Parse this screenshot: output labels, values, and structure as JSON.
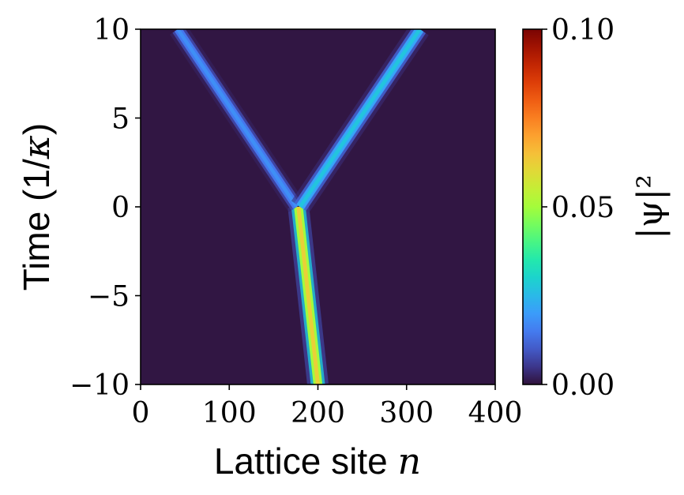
{
  "chart_data": {
    "type": "heatmap",
    "xlabel": {
      "text": "Lattice site ",
      "math": "n"
    },
    "ylabel": {
      "text": "Time (1/",
      "math": "κ",
      "close": ")"
    },
    "xlim": [
      0,
      400
    ],
    "ylim": [
      -10,
      10
    ],
    "x_ticks": [
      0,
      100,
      200,
      300,
      400
    ],
    "x_tick_labels": [
      "0",
      "100",
      "200",
      "300",
      "400"
    ],
    "y_ticks": [
      -10,
      -5,
      0,
      5,
      10
    ],
    "y_tick_labels": [
      "−10",
      "−5",
      "0",
      "5",
      "10"
    ],
    "colorbar": {
      "label": "|ψ|²",
      "min": 0,
      "max": 0.1,
      "ticks": [
        0,
        0.05,
        0.1
      ],
      "tick_labels": [
        "0.00",
        "0.05",
        "0.10"
      ],
      "colormap": "turbo"
    },
    "features": [
      {
        "name": "incoming-beam",
        "path": [
          [
            200,
            -10
          ],
          [
            178,
            0
          ]
        ],
        "peak_intensity": 0.062,
        "width_sites": 10
      },
      {
        "name": "reflected-beam",
        "path": [
          [
            176,
            0
          ],
          [
            42,
            10
          ]
        ],
        "peak_intensity": 0.018,
        "width_sites": 9
      },
      {
        "name": "transmitted-beam",
        "path": [
          [
            180,
            0
          ],
          [
            315,
            10
          ]
        ],
        "peak_intensity": 0.027,
        "width_sites": 10
      }
    ],
    "grid": false
  }
}
